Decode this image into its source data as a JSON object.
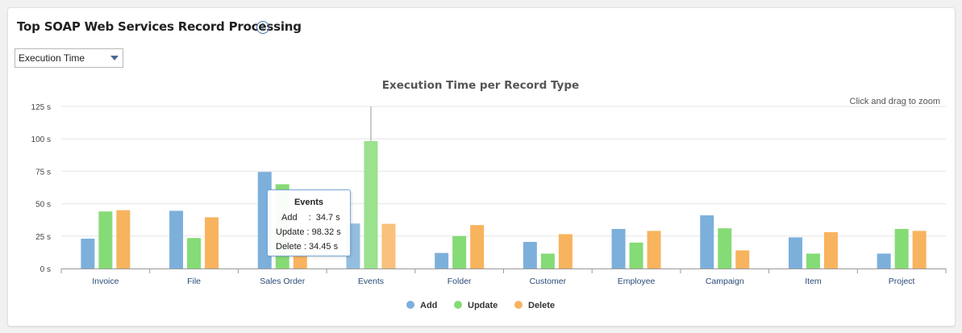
{
  "card": {
    "title": "Top SOAP Web Services Record Processing",
    "info_icon": "info-circle-icon"
  },
  "metric_select": {
    "value": "Execution Time"
  },
  "zoom_hint": "Click and drag to zoom",
  "tooltip": {
    "title": "Events",
    "rows": [
      {
        "label": "Add",
        "sep": ":",
        "value": "34.7 s"
      },
      {
        "label": "Update",
        "sep": ":",
        "value": "98.32 s"
      },
      {
        "label": "Delete",
        "sep": ":",
        "value": "34.45 s"
      }
    ]
  },
  "chart_data": {
    "type": "bar",
    "title": "Execution Time per Record Type",
    "xlabel": "",
    "ylabel": "",
    "ylim": [
      0,
      125
    ],
    "yticks": [
      0,
      25,
      50,
      75,
      100,
      125
    ],
    "ytick_labels": [
      "0 s",
      "25 s",
      "50 s",
      "75 s",
      "100 s",
      "125 s"
    ],
    "categories": [
      "Invoice",
      "File",
      "Sales Order",
      "Events",
      "Folder",
      "Customer",
      "Employee",
      "Campaign",
      "Item",
      "Project"
    ],
    "series": [
      {
        "name": "Add",
        "color": "#7cb0db",
        "values": [
          23,
          44.5,
          74.5,
          34.7,
          12,
          20.5,
          30.5,
          41,
          24,
          11.5
        ]
      },
      {
        "name": "Update",
        "color": "#85db75",
        "values": [
          44,
          23.5,
          65,
          98.32,
          25,
          11.5,
          20,
          31,
          11.5,
          30.5
        ]
      },
      {
        "name": "Delete",
        "color": "#f8b35e",
        "values": [
          45,
          39.5,
          12,
          34.45,
          33.5,
          26.5,
          29,
          14,
          28,
          29
        ]
      }
    ],
    "grid": true,
    "legend_position": "bottom-center",
    "highlighted_category": "Events"
  }
}
